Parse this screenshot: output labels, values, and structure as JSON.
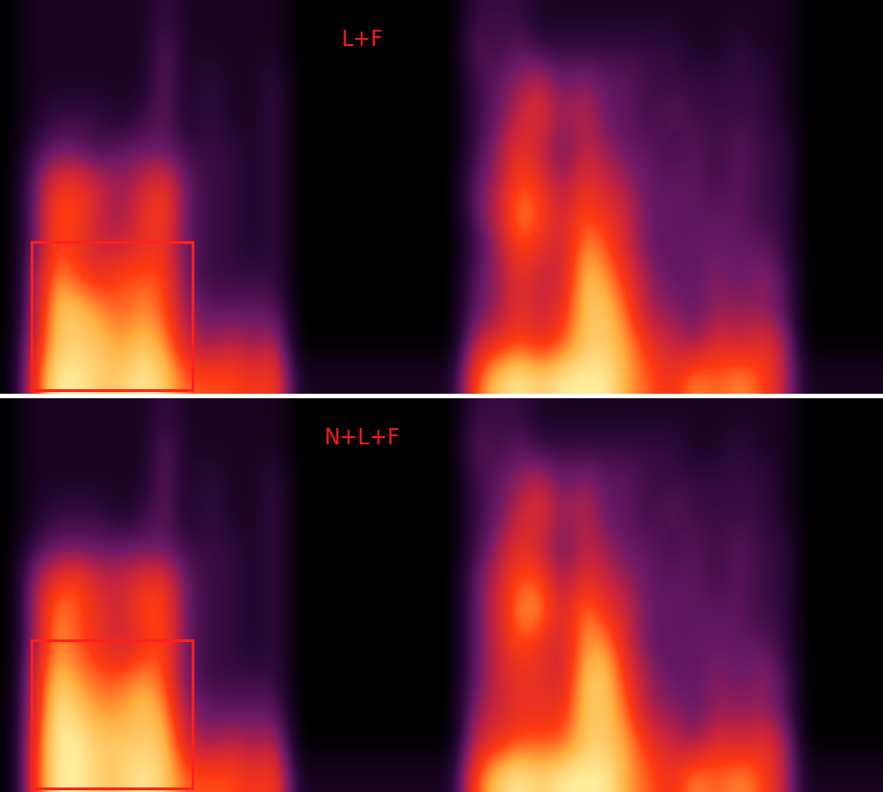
{
  "chart_data": [
    {
      "type": "heatmap",
      "title": "L+F",
      "tick_labels": false,
      "cells": [
        [
          0,
          0.1,
          0.1,
          0.1,
          0.1,
          0.1,
          0.1,
          0.2,
          0.1,
          0.1,
          0.1,
          0.1,
          0.1,
          0,
          0,
          0,
          0,
          0,
          0,
          0,
          0,
          0.2,
          0.2,
          0.2,
          0.1,
          0.1,
          0.1,
          0.1,
          0.1,
          0.1,
          0.1,
          0.1,
          0.1,
          0.1,
          0.1,
          0.1,
          0,
          0,
          0,
          0
        ],
        [
          0,
          0.1,
          0.1,
          0.1,
          0.1,
          0.1,
          0.1,
          0.3,
          0.1,
          0.1,
          0.1,
          0.1,
          0.1,
          0,
          0,
          0,
          0,
          0,
          0,
          0,
          0,
          0.3,
          0.2,
          0.3,
          0.2,
          0.2,
          0.2,
          0.2,
          0.2,
          0.2,
          0.2,
          0.1,
          0.1,
          0.2,
          0.1,
          0.1,
          0,
          0,
          0,
          0
        ],
        [
          0,
          0.1,
          0.1,
          0.1,
          0.1,
          0.1,
          0.1,
          0.3,
          0.1,
          0.2,
          0.1,
          0.1,
          0.2,
          0,
          0,
          0,
          0,
          0,
          0,
          0,
          0,
          0.2,
          0.3,
          0.4,
          0.5,
          0.3,
          0.4,
          0.3,
          0.3,
          0.2,
          0.2,
          0.2,
          0.2,
          0.2,
          0.2,
          0.1,
          0,
          0,
          0,
          0
        ],
        [
          0,
          0.1,
          0.2,
          0.2,
          0.2,
          0.1,
          0.2,
          0.3,
          0.1,
          0.2,
          0.1,
          0.1,
          0.2,
          0,
          0,
          0,
          0,
          0,
          0,
          0,
          0,
          0.2,
          0.3,
          0.5,
          0.6,
          0.4,
          0.5,
          0.3,
          0.3,
          0.2,
          0.3,
          0.2,
          0.2,
          0.2,
          0.2,
          0.1,
          0,
          0,
          0,
          0
        ],
        [
          0,
          0.2,
          0.3,
          0.3,
          0.2,
          0.3,
          0.3,
          0.3,
          0.2,
          0.2,
          0.2,
          0.1,
          0.2,
          0,
          0,
          0,
          0,
          0,
          0,
          0,
          0,
          0.2,
          0.4,
          0.6,
          0.5,
          0.3,
          0.5,
          0.4,
          0.3,
          0.3,
          0.2,
          0.3,
          0.2,
          0.3,
          0.2,
          0.2,
          0,
          0,
          0,
          0
        ],
        [
          0,
          0.3,
          0.6,
          0.6,
          0.5,
          0.4,
          0.5,
          0.6,
          0.3,
          0.2,
          0.2,
          0.1,
          0.2,
          0,
          0,
          0,
          0,
          0,
          0,
          0,
          0,
          0.3,
          0.4,
          0.7,
          0.6,
          0.4,
          0.6,
          0.5,
          0.4,
          0.3,
          0.3,
          0.3,
          0.2,
          0.3,
          0.2,
          0.2,
          0,
          0,
          0,
          0
        ],
        [
          0,
          0.3,
          0.7,
          0.7,
          0.5,
          0.4,
          0.6,
          0.7,
          0.3,
          0.2,
          0.2,
          0.1,
          0.2,
          0,
          0,
          0,
          0,
          0,
          0,
          0,
          0,
          0.3,
          0.5,
          0.8,
          0.7,
          0.5,
          0.7,
          0.6,
          0.5,
          0.3,
          0.3,
          0.3,
          0.3,
          0.3,
          0.2,
          0.2,
          0,
          0,
          0,
          0
        ],
        [
          0,
          0.3,
          0.7,
          0.6,
          0.5,
          0.5,
          0.6,
          0.6,
          0.3,
          0.2,
          0.2,
          0.1,
          0.2,
          0,
          0,
          0,
          0,
          0,
          0,
          0,
          0,
          0.2,
          0.4,
          0.7,
          0.6,
          0.5,
          0.8,
          0.7,
          0.5,
          0.3,
          0.3,
          0.3,
          0.3,
          0.3,
          0.3,
          0.2,
          0,
          0,
          0,
          0
        ],
        [
          0,
          0.4,
          0.8,
          0.7,
          0.6,
          0.7,
          0.7,
          0.7,
          0.3,
          0.2,
          0.2,
          0.2,
          0.2,
          0,
          0,
          0,
          0,
          0,
          0,
          0,
          0,
          0.3,
          0.4,
          0.6,
          0.5,
          0.5,
          0.9,
          0.8,
          0.6,
          0.4,
          0.3,
          0.3,
          0.4,
          0.3,
          0.4,
          0.3,
          0,
          0,
          0,
          0
        ],
        [
          0,
          0.4,
          0.9,
          0.9,
          0.8,
          0.7,
          0.8,
          0.7,
          0.4,
          0.3,
          0.3,
          0.3,
          0.3,
          0,
          0,
          0,
          0,
          0,
          0,
          0,
          0,
          0.3,
          0.4,
          0.6,
          0.5,
          0.6,
          0.9,
          0.9,
          0.7,
          0.4,
          0.4,
          0.3,
          0.4,
          0.4,
          0.4,
          0.3,
          0,
          0,
          0,
          0
        ],
        [
          0,
          0.5,
          0.9,
          0.9,
          0.9,
          0.8,
          0.9,
          0.8,
          0.5,
          0.4,
          0.5,
          0.4,
          0.5,
          0,
          0,
          0,
          0,
          0,
          0,
          0,
          0,
          0.5,
          0.6,
          0.7,
          0.6,
          0.7,
          0.9,
          0.9,
          0.8,
          0.6,
          0.5,
          0.4,
          0.6,
          0.5,
          0.6,
          0.5,
          0,
          0,
          0,
          0
        ],
        [
          0,
          0.6,
          1.0,
          1.0,
          0.9,
          0.9,
          1.0,
          0.9,
          0.7,
          0.7,
          0.7,
          0.6,
          0.7,
          0.1,
          0.1,
          0.1,
          0.1,
          0.1,
          0.1,
          0.1,
          0.1,
          0.7,
          0.9,
          1.0,
          0.9,
          1.0,
          1.0,
          1.0,
          0.8,
          0.7,
          0.6,
          0.8,
          0.7,
          0.8,
          0.7,
          0.5,
          0.1,
          0.1,
          0.1,
          0.1
        ]
      ]
    },
    {
      "type": "heatmap",
      "title": "N+L+F",
      "tick_labels": false,
      "cells": [
        [
          0,
          0.1,
          0.1,
          0.1,
          0.1,
          0.1,
          0.1,
          0.2,
          0.1,
          0.1,
          0.1,
          0.1,
          0.1,
          0,
          0,
          0,
          0,
          0,
          0,
          0,
          0,
          0.2,
          0.2,
          0.2,
          0.1,
          0.1,
          0.1,
          0.1,
          0.1,
          0.1,
          0.1,
          0.1,
          0.1,
          0.1,
          0.1,
          0.1,
          0,
          0,
          0,
          0
        ],
        [
          0,
          0.1,
          0.1,
          0.1,
          0.1,
          0.1,
          0.1,
          0.3,
          0.1,
          0.1,
          0.1,
          0.1,
          0.1,
          0,
          0,
          0,
          0,
          0,
          0,
          0,
          0,
          0.3,
          0.2,
          0.3,
          0.2,
          0.2,
          0.2,
          0.2,
          0.2,
          0.2,
          0.2,
          0.1,
          0.1,
          0.2,
          0.1,
          0.1,
          0,
          0,
          0,
          0
        ],
        [
          0,
          0.1,
          0.1,
          0.1,
          0.1,
          0.1,
          0.1,
          0.3,
          0.1,
          0.2,
          0.1,
          0.1,
          0.2,
          0,
          0,
          0,
          0,
          0,
          0,
          0,
          0,
          0.2,
          0.3,
          0.4,
          0.5,
          0.3,
          0.4,
          0.3,
          0.3,
          0.2,
          0.2,
          0.2,
          0.2,
          0.2,
          0.2,
          0.1,
          0,
          0,
          0,
          0
        ],
        [
          0,
          0.1,
          0.2,
          0.2,
          0.2,
          0.1,
          0.2,
          0.3,
          0.1,
          0.2,
          0.1,
          0.1,
          0.2,
          0,
          0,
          0,
          0,
          0,
          0,
          0,
          0,
          0.2,
          0.3,
          0.5,
          0.6,
          0.4,
          0.5,
          0.3,
          0.3,
          0.2,
          0.3,
          0.2,
          0.2,
          0.2,
          0.2,
          0.1,
          0,
          0,
          0,
          0
        ],
        [
          0,
          0.2,
          0.3,
          0.3,
          0.3,
          0.3,
          0.3,
          0.3,
          0.2,
          0.2,
          0.2,
          0.1,
          0.2,
          0,
          0,
          0,
          0,
          0,
          0,
          0,
          0,
          0.2,
          0.4,
          0.6,
          0.5,
          0.3,
          0.5,
          0.4,
          0.3,
          0.3,
          0.2,
          0.3,
          0.2,
          0.3,
          0.2,
          0.2,
          0,
          0,
          0,
          0
        ],
        [
          0,
          0.4,
          0.6,
          0.7,
          0.5,
          0.5,
          0.6,
          0.6,
          0.3,
          0.2,
          0.2,
          0.1,
          0.2,
          0,
          0,
          0,
          0,
          0,
          0,
          0,
          0,
          0.3,
          0.5,
          0.7,
          0.7,
          0.4,
          0.6,
          0.5,
          0.4,
          0.3,
          0.3,
          0.3,
          0.2,
          0.3,
          0.2,
          0.2,
          0,
          0,
          0,
          0
        ],
        [
          0,
          0.4,
          0.8,
          0.7,
          0.6,
          0.5,
          0.7,
          0.7,
          0.3,
          0.2,
          0.2,
          0.1,
          0.2,
          0,
          0,
          0,
          0,
          0,
          0,
          0,
          0,
          0.3,
          0.5,
          0.8,
          0.8,
          0.5,
          0.8,
          0.6,
          0.5,
          0.3,
          0.3,
          0.3,
          0.3,
          0.3,
          0.2,
          0.2,
          0,
          0,
          0,
          0
        ],
        [
          0,
          0.4,
          0.8,
          0.7,
          0.6,
          0.5,
          0.6,
          0.7,
          0.3,
          0.2,
          0.2,
          0.1,
          0.2,
          0,
          0,
          0,
          0,
          0,
          0,
          0,
          0,
          0.3,
          0.5,
          0.7,
          0.6,
          0.5,
          0.8,
          0.8,
          0.5,
          0.3,
          0.3,
          0.3,
          0.3,
          0.3,
          0.3,
          0.2,
          0,
          0,
          0,
          0
        ],
        [
          0,
          0.5,
          0.9,
          0.8,
          0.7,
          0.7,
          0.8,
          0.7,
          0.3,
          0.2,
          0.2,
          0.2,
          0.2,
          0,
          0,
          0,
          0,
          0,
          0,
          0,
          0,
          0.3,
          0.5,
          0.6,
          0.6,
          0.5,
          0.9,
          0.9,
          0.6,
          0.4,
          0.3,
          0.3,
          0.4,
          0.3,
          0.4,
          0.3,
          0,
          0,
          0,
          0
        ],
        [
          0,
          0.5,
          1.0,
          0.9,
          0.8,
          0.8,
          0.9,
          0.8,
          0.4,
          0.3,
          0.3,
          0.3,
          0.3,
          0,
          0,
          0,
          0,
          0,
          0,
          0,
          0,
          0.4,
          0.5,
          0.6,
          0.6,
          0.6,
          0.9,
          0.9,
          0.7,
          0.4,
          0.4,
          0.3,
          0.4,
          0.4,
          0.4,
          0.3,
          0,
          0,
          0,
          0
        ],
        [
          0,
          0.6,
          1.0,
          1.0,
          0.9,
          0.9,
          0.9,
          0.9,
          0.5,
          0.4,
          0.5,
          0.4,
          0.5,
          0,
          0,
          0,
          0,
          0,
          0,
          0,
          0,
          0.5,
          0.6,
          0.7,
          0.7,
          0.7,
          0.9,
          0.9,
          0.8,
          0.6,
          0.5,
          0.4,
          0.6,
          0.5,
          0.6,
          0.5,
          0,
          0,
          0,
          0
        ],
        [
          0,
          0.6,
          1.0,
          1.0,
          0.9,
          0.9,
          1.0,
          0.9,
          0.7,
          0.7,
          0.7,
          0.6,
          0.7,
          0.1,
          0.1,
          0.1,
          0.1,
          0.1,
          0.1,
          0.1,
          0.1,
          0.7,
          0.9,
          1.0,
          0.9,
          1.0,
          1.0,
          1.0,
          0.8,
          0.7,
          0.6,
          0.8,
          0.7,
          0.8,
          0.7,
          0.5,
          0.1,
          0.1,
          0.1,
          0.1
        ]
      ]
    }
  ]
}
